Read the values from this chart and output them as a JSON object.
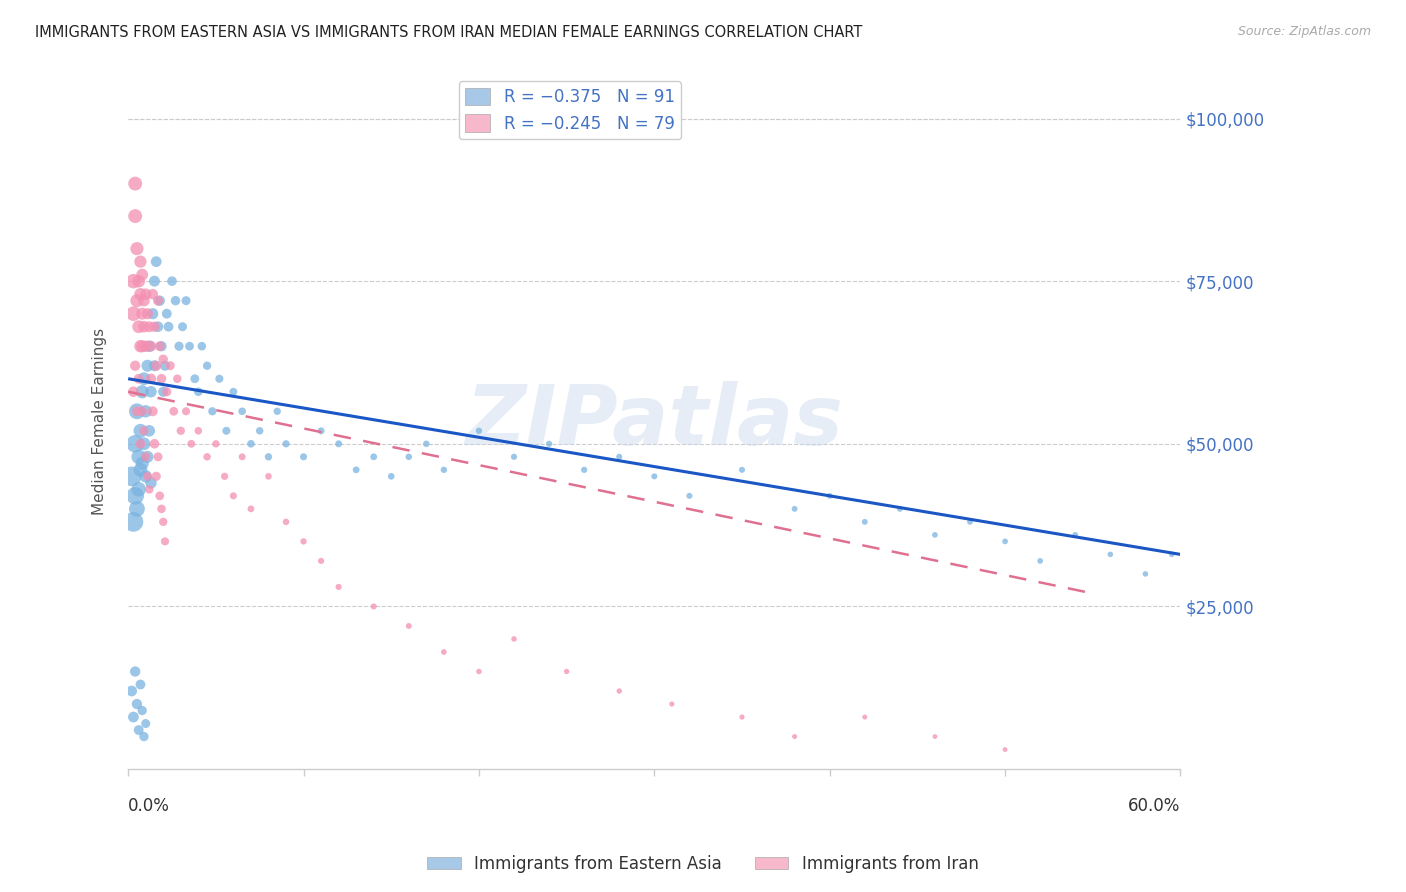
{
  "title": "IMMIGRANTS FROM EASTERN ASIA VS IMMIGRANTS FROM IRAN MEDIAN FEMALE EARNINGS CORRELATION CHART",
  "source": "Source: ZipAtlas.com",
  "ylabel": "Median Female Earnings",
  "series1_label": "Immigrants from Eastern Asia",
  "series2_label": "Immigrants from Iran",
  "series1_color": "#7ab3e0",
  "series2_color": "#f48fb1",
  "series1_line_color": "#1a56c4",
  "series2_line_color": "#e07090",
  "watermark": "ZIPatlas",
  "grid_color": "#cccccc",
  "background_color": "#ffffff",
  "title_color": "#222222",
  "source_color": "#aaaaaa",
  "ylabel_color": "#555555",
  "right_tick_color": "#4472c4",
  "xlim": [
    0.0,
    0.6
  ],
  "ylim": [
    0,
    107000
  ],
  "ytick_vals": [
    25000,
    50000,
    75000,
    100000
  ],
  "ytick_labels": [
    "$25,000",
    "$50,000",
    "$75,000",
    "$100,000"
  ],
  "legend_label1": "R = −0.375   N = 91",
  "legend_label2": "R = −0.245   N = 79",
  "legend_color1": "#a8c8e8",
  "legend_color2": "#f8b8cc",
  "series1_x": [
    0.002,
    0.003,
    0.004,
    0.004,
    0.005,
    0.005,
    0.006,
    0.006,
    0.007,
    0.007,
    0.008,
    0.008,
    0.009,
    0.009,
    0.01,
    0.01,
    0.011,
    0.011,
    0.012,
    0.012,
    0.013,
    0.013,
    0.014,
    0.015,
    0.015,
    0.016,
    0.017,
    0.018,
    0.019,
    0.02,
    0.021,
    0.022,
    0.023,
    0.025,
    0.027,
    0.029,
    0.031,
    0.033,
    0.035,
    0.038,
    0.04,
    0.042,
    0.045,
    0.048,
    0.052,
    0.056,
    0.06,
    0.065,
    0.07,
    0.075,
    0.08,
    0.085,
    0.09,
    0.1,
    0.11,
    0.12,
    0.13,
    0.14,
    0.15,
    0.16,
    0.17,
    0.18,
    0.2,
    0.22,
    0.24,
    0.26,
    0.28,
    0.3,
    0.32,
    0.35,
    0.38,
    0.4,
    0.42,
    0.44,
    0.46,
    0.48,
    0.5,
    0.52,
    0.54,
    0.56,
    0.58,
    0.595,
    0.002,
    0.003,
    0.004,
    0.005,
    0.006,
    0.007,
    0.008,
    0.009,
    0.01
  ],
  "series1_y": [
    45000,
    38000,
    50000,
    42000,
    55000,
    40000,
    48000,
    43000,
    52000,
    46000,
    58000,
    47000,
    60000,
    50000,
    55000,
    45000,
    62000,
    48000,
    65000,
    52000,
    58000,
    44000,
    70000,
    75000,
    62000,
    78000,
    68000,
    72000,
    65000,
    58000,
    62000,
    70000,
    68000,
    75000,
    72000,
    65000,
    68000,
    72000,
    65000,
    60000,
    58000,
    65000,
    62000,
    55000,
    60000,
    52000,
    58000,
    55000,
    50000,
    52000,
    48000,
    55000,
    50000,
    48000,
    52000,
    50000,
    46000,
    48000,
    45000,
    48000,
    50000,
    46000,
    52000,
    48000,
    50000,
    46000,
    48000,
    45000,
    42000,
    46000,
    40000,
    42000,
    38000,
    40000,
    36000,
    38000,
    35000,
    32000,
    36000,
    33000,
    30000,
    33000,
    12000,
    8000,
    15000,
    10000,
    6000,
    13000,
    9000,
    5000,
    7000
  ],
  "series1_sizes": [
    200,
    200,
    160,
    160,
    130,
    130,
    110,
    110,
    100,
    100,
    90,
    90,
    85,
    85,
    80,
    80,
    75,
    75,
    70,
    70,
    68,
    68,
    65,
    62,
    62,
    60,
    58,
    56,
    55,
    54,
    52,
    50,
    50,
    48,
    46,
    44,
    42,
    42,
    40,
    40,
    38,
    38,
    36,
    35,
    34,
    33,
    32,
    30,
    30,
    29,
    28,
    28,
    27,
    26,
    25,
    25,
    24,
    24,
    23,
    22,
    22,
    21,
    21,
    20,
    20,
    20,
    19,
    19,
    19,
    19,
    18,
    18,
    18,
    18,
    17,
    17,
    17,
    17,
    17,
    16,
    16,
    16,
    60,
    60,
    55,
    55,
    50,
    50,
    45,
    45,
    42
  ],
  "series2_x": [
    0.003,
    0.003,
    0.004,
    0.004,
    0.005,
    0.005,
    0.006,
    0.006,
    0.007,
    0.007,
    0.007,
    0.008,
    0.008,
    0.008,
    0.009,
    0.009,
    0.01,
    0.01,
    0.011,
    0.012,
    0.013,
    0.014,
    0.015,
    0.016,
    0.017,
    0.018,
    0.019,
    0.02,
    0.022,
    0.024,
    0.026,
    0.028,
    0.03,
    0.033,
    0.036,
    0.04,
    0.045,
    0.05,
    0.055,
    0.06,
    0.065,
    0.07,
    0.08,
    0.09,
    0.1,
    0.11,
    0.12,
    0.14,
    0.16,
    0.18,
    0.2,
    0.22,
    0.25,
    0.28,
    0.31,
    0.35,
    0.38,
    0.42,
    0.46,
    0.5,
    0.003,
    0.004,
    0.005,
    0.006,
    0.007,
    0.008,
    0.009,
    0.01,
    0.011,
    0.012,
    0.013,
    0.014,
    0.015,
    0.016,
    0.017,
    0.018,
    0.019,
    0.02,
    0.021
  ],
  "series2_y": [
    70000,
    75000,
    85000,
    90000,
    80000,
    72000,
    75000,
    68000,
    73000,
    65000,
    78000,
    70000,
    65000,
    76000,
    72000,
    68000,
    65000,
    73000,
    70000,
    68000,
    65000,
    73000,
    68000,
    62000,
    72000,
    65000,
    60000,
    63000,
    58000,
    62000,
    55000,
    60000,
    52000,
    55000,
    50000,
    52000,
    48000,
    50000,
    45000,
    42000,
    48000,
    40000,
    45000,
    38000,
    35000,
    32000,
    28000,
    25000,
    22000,
    18000,
    15000,
    20000,
    15000,
    12000,
    10000,
    8000,
    5000,
    8000,
    5000,
    3000,
    58000,
    62000,
    55000,
    60000,
    50000,
    55000,
    52000,
    48000,
    45000,
    43000,
    60000,
    55000,
    50000,
    45000,
    48000,
    42000,
    40000,
    38000,
    35000
  ],
  "series2_sizes": [
    110,
    110,
    100,
    100,
    90,
    90,
    85,
    85,
    80,
    80,
    78,
    75,
    75,
    73,
    70,
    70,
    68,
    68,
    65,
    62,
    60,
    58,
    56,
    54,
    52,
    50,
    48,
    46,
    44,
    42,
    40,
    38,
    36,
    34,
    32,
    30,
    29,
    28,
    27,
    26,
    25,
    24,
    23,
    22,
    21,
    20,
    20,
    19,
    18,
    17,
    16,
    16,
    15,
    15,
    14,
    14,
    13,
    13,
    12,
    12,
    58,
    55,
    52,
    50,
    48,
    46,
    44,
    42,
    40,
    38,
    56,
    52,
    48,
    44,
    42,
    40,
    38,
    36,
    34
  ],
  "blue_line": {
    "x0": 0.0,
    "y0": 60000,
    "x1": 0.6,
    "y1": 33000
  },
  "pink_line": {
    "x0": 0.0,
    "y0": 58000,
    "x1": 0.55,
    "y1": 27000
  }
}
